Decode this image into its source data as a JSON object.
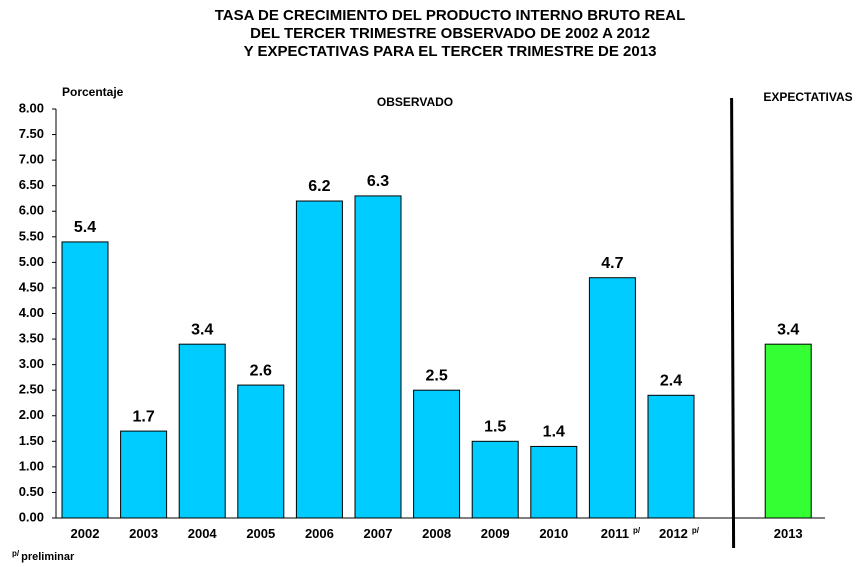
{
  "chart_data": {
    "type": "bar",
    "title": [
      "TASA DE CRECIMIENTO DEL PRODUCTO INTERNO BRUTO REAL",
      "DEL TERCER TRIMESTRE OBSERVADO DE  2002 A 2012",
      "Y EXPECTATIVAS PARA EL TERCER TRIMESTRE  DE  2013"
    ],
    "y_label": "Porcentaje",
    "annotations": [
      "OBSERVADO",
      "EXPECTATIVAS"
    ],
    "categories": [
      "2002",
      "2003",
      "2004",
      "2005",
      "2006",
      "2007",
      "2008",
      "2009",
      "2010",
      "2011",
      "2012",
      null,
      "2013"
    ],
    "category_notes": [
      null,
      null,
      null,
      null,
      null,
      null,
      null,
      null,
      null,
      "p/",
      "p/",
      null,
      null
    ],
    "values": [
      5.4,
      1.7,
      3.4,
      2.6,
      6.2,
      6.3,
      2.5,
      1.5,
      1.4,
      4.7,
      2.4,
      null,
      3.4
    ],
    "colors": [
      "#00ccff",
      "#00ccff",
      "#00ccff",
      "#00ccff",
      "#00ccff",
      "#00ccff",
      "#00ccff",
      "#00ccff",
      "#00ccff",
      "#00ccff",
      "#00ccff",
      null,
      "#33ff33"
    ],
    "ylim": [
      0,
      8
    ],
    "yticks": [
      {
        "value": 0,
        "label": "0.00"
      },
      {
        "value": 0.5,
        "label": "0.50"
      },
      {
        "value": 1,
        "label": "1.00"
      },
      {
        "value": 1.5,
        "label": "1.50"
      },
      {
        "value": 2,
        "label": "2.00"
      },
      {
        "value": 2.5,
        "label": "2.50"
      },
      {
        "value": 3,
        "label": "3.00"
      },
      {
        "value": 3.5,
        "label": "3.50"
      },
      {
        "value": 4,
        "label": "4.00"
      },
      {
        "value": 4.5,
        "label": "4.50"
      },
      {
        "value": 5,
        "label": "5.00"
      },
      {
        "value": 5.5,
        "label": "5.50"
      },
      {
        "value": 6,
        "label": "6.00"
      },
      {
        "value": 6.5,
        "label": "6.50"
      },
      {
        "value": 7,
        "label": "7.00"
      },
      {
        "value": 7.5,
        "label": "7.50"
      },
      {
        "value": 8,
        "label": "8.00"
      }
    ],
    "footnote": {
      "mark": "p/",
      "text": "preliminar"
    }
  }
}
